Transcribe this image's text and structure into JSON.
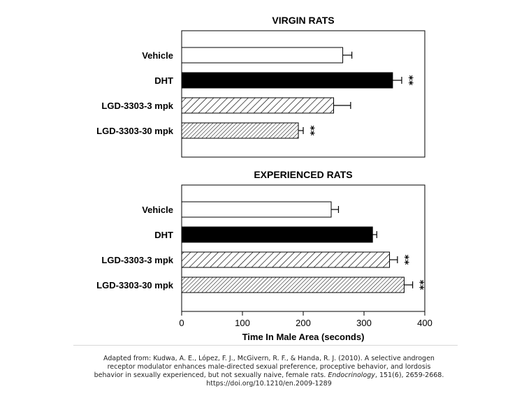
{
  "chart_data": [
    {
      "type": "bar",
      "orientation": "horizontal",
      "title": "VIRGIN RATS",
      "categories": [
        "Vehicle",
        "DHT",
        "LGD-3303-3 mpk",
        "LGD-3303-30 mpk"
      ],
      "values": [
        265,
        347,
        250,
        192
      ],
      "errors": [
        15,
        15,
        28,
        8
      ],
      "significance": [
        "",
        "**",
        "",
        "**"
      ],
      "fills": [
        "#ffffff",
        "#000000",
        "hatch",
        "hatch-fine"
      ],
      "xlim": [
        0,
        400
      ],
      "grid": false
    },
    {
      "type": "bar",
      "orientation": "horizontal",
      "title": "EXPERIENCED RATS",
      "categories": [
        "Vehicle",
        "DHT",
        "LGD-3303-3 mpk",
        "LGD-3303-30 mpk"
      ],
      "values": [
        246,
        314,
        342,
        366
      ],
      "errors": [
        12,
        7,
        13,
        14
      ],
      "significance": [
        "",
        "",
        "**",
        "**"
      ],
      "fills": [
        "#ffffff",
        "#000000",
        "hatch",
        "hatch-fine"
      ],
      "xlim": [
        0,
        400
      ],
      "xticks": [
        0,
        100,
        200,
        300,
        400
      ],
      "xlabel": "Time In Male Area (seconds)",
      "grid": false
    }
  ],
  "caption": {
    "line1": "Adapted from: Kudwa, A. E., López, F. J., McGivern, R. F., & Handa, R. J. (2010). A selective androgen",
    "line2": "receptor modulator enhances male-directed sexual preference, proceptive behavior, and lordosis",
    "line3a": "behavior in sexually experienced, but not sexually naive, female rats. ",
    "journal": "Endocrinology",
    "line3b": ", 151(6), 2659-2668.",
    "line4": "https://doi.org/10.1210/en.2009-1289"
  }
}
